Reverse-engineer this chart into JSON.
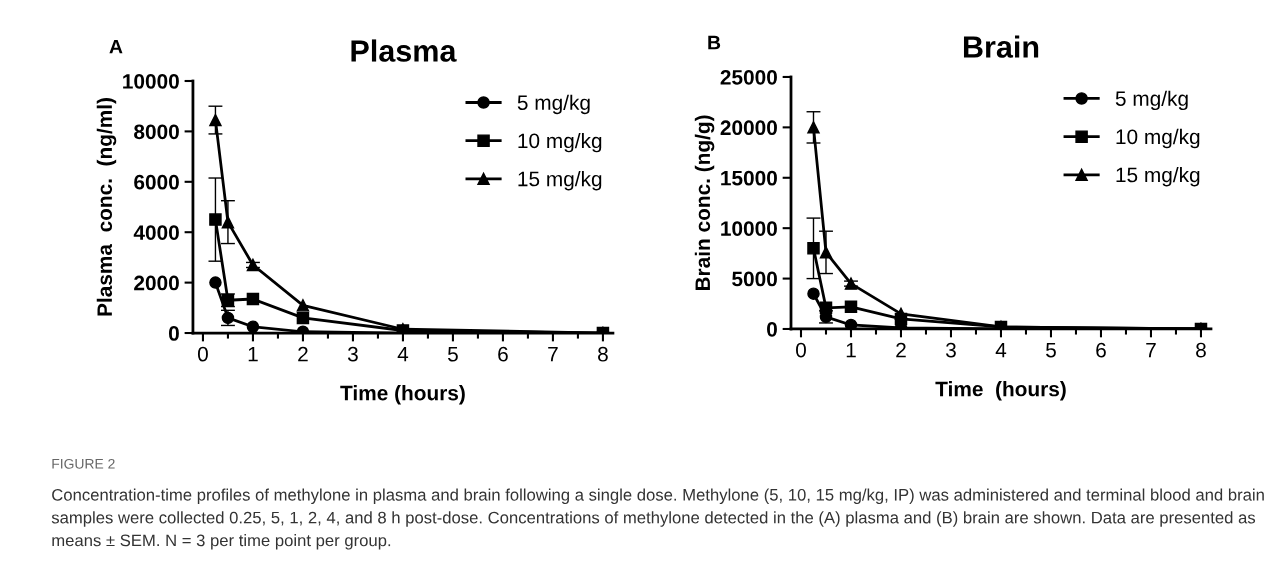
{
  "chart_data": [
    {
      "type": "line",
      "title": "Plasma",
      "xlabel": "Time (hours)",
      "ylabel": "Plasma  conc.  (ng/ml)",
      "annotations": [
        "A",
        "FIGURE 2",
        "Concentration-time profiles of methylone in plasma and brain following a single dose. Methylone (5, 10, 15 mg/kg, IP) was administered and terminal blood and brain samples were collected 0.25, 5, 1, 2, 4, and 8 h post-dose. Concentrations of methylone detected in the (A) plasma and (B) brain are shown. Data are presented as means ± SEM. N = 3 per time point per group."
      ],
      "x": [
        0.25,
        0.5,
        1,
        2,
        4,
        8
      ],
      "series": [
        {
          "name": "5 mg/kg",
          "color": "#000000",
          "marker": "circle",
          "values": [
            2000,
            600,
            250,
            50,
            0,
            0
          ],
          "errors": [
            null,
            300,
            null,
            null,
            null,
            null
          ]
        },
        {
          "name": "10 mg/kg",
          "color": "#000000",
          "marker": "square",
          "values": [
            4500,
            1300,
            1350,
            600,
            100,
            0
          ],
          "errors": [
            1650,
            250,
            null,
            null,
            null,
            null
          ]
        },
        {
          "name": "15 mg/kg",
          "color": "#000000",
          "marker": "triangle",
          "values": [
            8450,
            4400,
            2700,
            1100,
            150,
            0
          ],
          "errors": [
            550,
            850,
            100,
            null,
            null,
            null
          ]
        }
      ],
      "xlim": [
        -0.2,
        8.2
      ],
      "xticks": [
        0,
        1,
        2,
        3,
        4,
        5,
        6,
        7,
        8
      ],
      "ylim": [
        0,
        10000
      ],
      "yticks": [
        0,
        2000,
        4000,
        6000,
        8000,
        10000
      ],
      "grid": false,
      "legend": "top right"
    },
    {
      "type": "line",
      "title": "Brain",
      "xlabel": "Time  (hours)",
      "ylabel": "Brain conc. (ng/g)",
      "annotations": [
        "B"
      ],
      "x": [
        0.25,
        0.5,
        1,
        2,
        4,
        8
      ],
      "series": [
        {
          "name": "5 mg/kg",
          "color": "#000000",
          "marker": "circle",
          "values": [
            3500,
            1200,
            400,
            100,
            0,
            0
          ],
          "errors": [
            null,
            600,
            null,
            null,
            null,
            null
          ]
        },
        {
          "name": "10 mg/kg",
          "color": "#000000",
          "marker": "square",
          "values": [
            8000,
            2100,
            2200,
            1000,
            200,
            0
          ],
          "errors": [
            3000,
            null,
            null,
            null,
            null,
            null
          ]
        },
        {
          "name": "15 mg/kg",
          "color": "#000000",
          "marker": "triangle",
          "values": [
            20000,
            7600,
            4500,
            1500,
            200,
            0
          ],
          "errors": [
            1550,
            2100,
            250,
            null,
            null,
            null
          ]
        }
      ],
      "xlim": [
        -0.2,
        8.2
      ],
      "xticks": [
        0,
        1,
        2,
        3,
        4,
        5,
        6,
        7,
        8
      ],
      "ylim": [
        0,
        25000
      ],
      "yticks": [
        0,
        5000,
        10000,
        15000,
        20000,
        25000
      ],
      "grid": false,
      "legend": "top right"
    }
  ]
}
